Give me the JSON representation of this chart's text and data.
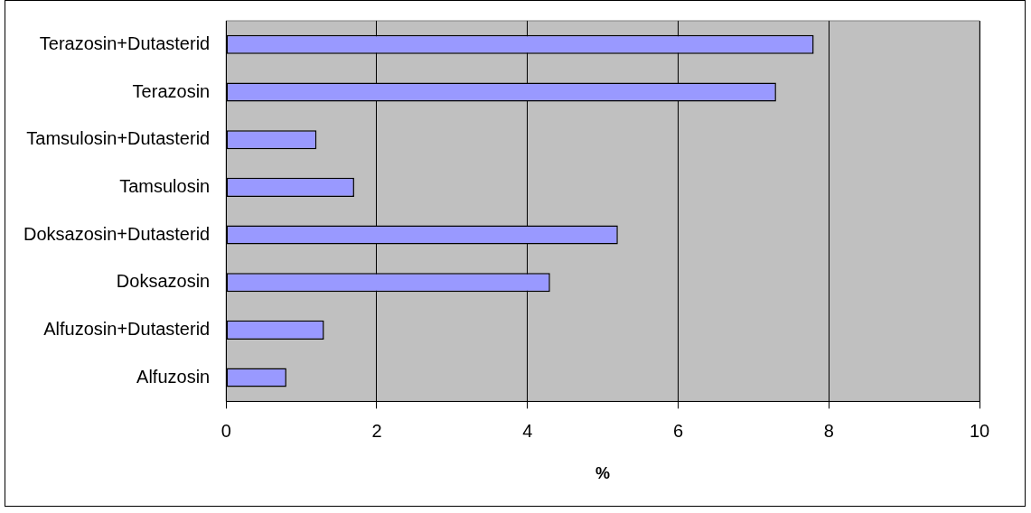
{
  "chart_data": {
    "type": "bar",
    "orientation": "horizontal",
    "xlabel": "%",
    "categories": [
      "Terazosin+Dutasterid",
      "Terazosin",
      "Tamsulosin+Dutasterid",
      "Tamsulosin",
      "Doksazosin+Dutasterid",
      "Doksazosin",
      "Alfuzosin+Dutasterid",
      "Alfuzosin"
    ],
    "values": [
      7.8,
      7.3,
      1.2,
      1.7,
      5.2,
      4.3,
      1.3,
      0.8
    ],
    "color": "#9999ff",
    "xlim": [
      0,
      10
    ],
    "xticks": [
      0,
      2,
      4,
      6,
      8,
      10
    ],
    "grid": "x",
    "legend": false
  }
}
